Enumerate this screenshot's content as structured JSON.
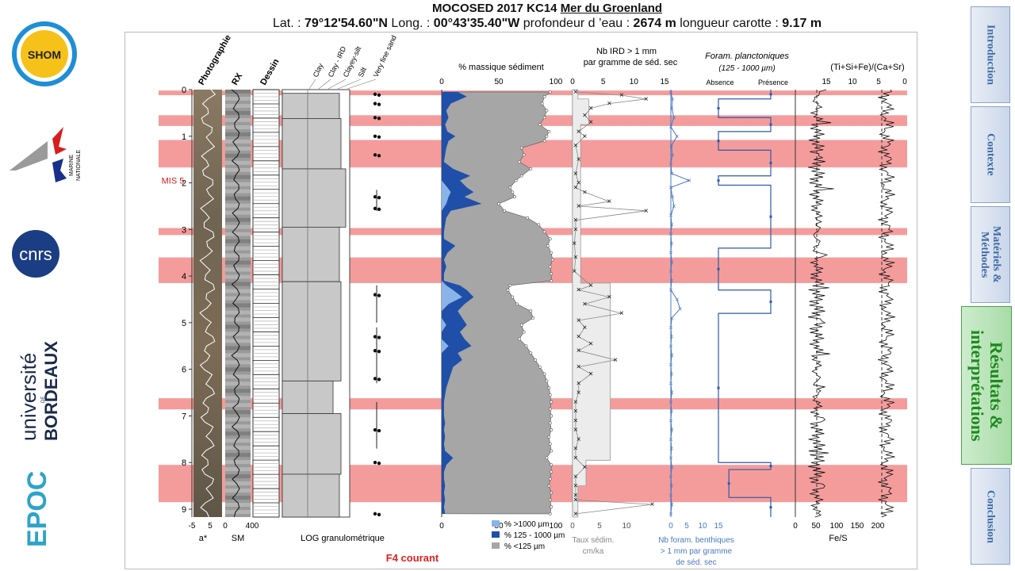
{
  "header": {
    "title": "MOCOSED 2017 KC14 Mer du Groenland",
    "title_main": "MOCOSED 2017 KC14 ",
    "title_sea": "Mer du Groenland",
    "lat_label": "Lat. : ",
    "lat_value": "79°12'54.60\"N",
    "long_label": " Long. : ",
    "long_value": "00°43'35.40\"W",
    "depth_label": " profondeur d ’eau : ",
    "depth_value": "2674 m",
    "core_label": " longueur carotte : ",
    "core_value": "9.17 m"
  },
  "logos": {
    "shom": "SHOM",
    "marine_line1": "MARINE",
    "marine_line2": "NATIONALE",
    "cnrs": "cnrs",
    "ub_line1": "université",
    "ub_line2": "BORDEAUX",
    "ub_de": "DE",
    "epoc": "EPOC"
  },
  "nav": {
    "items": [
      {
        "label": "Introduction"
      },
      {
        "label": "Contexte"
      },
      {
        "label": "Matériels & Méthodes"
      },
      {
        "label": "Résultats & interprétations"
      },
      {
        "label": "Conclusion"
      }
    ]
  },
  "chart_data": {
    "type": "multi-panel core log",
    "depth_axis": {
      "min": 0,
      "max": 9.17,
      "ticks": [
        0,
        1,
        2,
        3,
        4,
        5,
        6,
        7,
        8,
        9
      ],
      "unit": "m"
    },
    "mis_label": "MIS 5",
    "mis_depth": 1.95,
    "highlight_bands_m": [
      [
        0.02,
        0.12
      ],
      [
        0.55,
        0.78
      ],
      [
        1.08,
        1.67
      ],
      [
        2.97,
        3.12
      ],
      [
        3.6,
        4.15
      ],
      [
        6.62,
        6.86
      ],
      [
        8.05,
        8.85
      ]
    ],
    "columns": {
      "photo": {
        "title": "Photographie",
        "xlabel": "a*",
        "ticks": [
          "-5",
          "5"
        ]
      },
      "rx": {
        "title": "RX",
        "xlabel": "SM",
        "ticks": [
          "0",
          "400"
        ]
      },
      "dessin": {
        "title": "Dessin"
      },
      "log": {
        "xlabel": "LOG granulométrique",
        "classes": [
          "Clay",
          "Clay - IRD",
          "Clayey-silt",
          "Silt",
          "Very fine sand"
        ]
      },
      "grain": {
        "title": "% massique sédiment",
        "ticks": [
          "0",
          "50",
          "100"
        ],
        "legend": [
          "% >1000 µm",
          "% 125 - 1000 µm",
          "% <125 µm"
        ],
        "colors": {
          "coarse": "#8ab4e8",
          "medium": "#1f4fa8",
          "fine": "#a6a6a6"
        },
        "depth": [
          0.05,
          0.15,
          0.3,
          0.45,
          0.6,
          0.75,
          0.9,
          1.0,
          1.1,
          1.25,
          1.4,
          1.55,
          1.7,
          1.85,
          1.95,
          2.1,
          2.2,
          2.3,
          2.45,
          2.6,
          2.75,
          2.9,
          3.05,
          3.2,
          3.35,
          3.5,
          3.65,
          3.8,
          3.95,
          4.1,
          4.2,
          4.3,
          4.45,
          4.6,
          4.75,
          4.9,
          5.05,
          5.2,
          5.35,
          5.5,
          5.65,
          5.8,
          5.95,
          6.1,
          6.25,
          6.4,
          6.55,
          6.7,
          6.85,
          7.0,
          7.15,
          7.3,
          7.45,
          7.6,
          7.75,
          7.9,
          8.05,
          8.2,
          8.35,
          8.5,
          8.65,
          8.8,
          8.95,
          9.1
        ],
        "coarse_pct": [
          0,
          0,
          0,
          0,
          0,
          0,
          0,
          0,
          0,
          0,
          0,
          0,
          0,
          0,
          0,
          5,
          8,
          6,
          4,
          0,
          0,
          0,
          0,
          0,
          0,
          0,
          0,
          0,
          0,
          0,
          4,
          10,
          18,
          6,
          0,
          0,
          4,
          0,
          0,
          6,
          0,
          0,
          0,
          0,
          0,
          0,
          0,
          0,
          0,
          0,
          0,
          0,
          0,
          0,
          0,
          0,
          0,
          0,
          0,
          0,
          0,
          0,
          0,
          0
        ],
        "medium_pct": [
          14,
          22,
          8,
          4,
          6,
          3,
          5,
          12,
          6,
          4,
          3,
          2,
          10,
          25,
          16,
          22,
          28,
          20,
          35,
          8,
          4,
          3,
          2,
          2,
          12,
          5,
          2,
          4,
          2,
          2,
          16,
          22,
          28,
          20,
          14,
          18,
          22,
          16,
          20,
          26,
          14,
          18,
          10,
          8,
          6,
          4,
          3,
          2,
          2,
          2,
          3,
          2,
          3,
          2,
          3,
          10,
          4,
          2,
          2,
          3,
          2,
          3,
          2,
          3
        ],
        "fine_pct": [
          95,
          90,
          88,
          92,
          90,
          86,
          94,
          92,
          90,
          70,
          72,
          68,
          78,
          70,
          65,
          60,
          62,
          64,
          50,
          55,
          75,
          85,
          90,
          95,
          93,
          96,
          97,
          95,
          96,
          96,
          60,
          58,
          62,
          66,
          78,
          80,
          70,
          72,
          68,
          74,
          78,
          82,
          86,
          90,
          92,
          94,
          95,
          96,
          95,
          96,
          95,
          96,
          94,
          95,
          96,
          92,
          96,
          96,
          95,
          94,
          96,
          95,
          96,
          95
        ]
      },
      "ird": {
        "title": "Nb IRD > 1 mm par gramme de séd. sec",
        "ticks": [
          "0",
          "5",
          "10",
          "15"
        ],
        "depth": [
          0.05,
          0.12,
          0.2,
          0.3,
          0.4,
          0.55,
          0.7,
          0.9,
          1.0,
          1.2,
          1.5,
          1.8,
          2.0,
          2.1,
          2.2,
          2.4,
          2.5,
          2.6,
          2.8,
          3.0,
          3.3,
          3.6,
          3.9,
          4.2,
          4.3,
          4.45,
          4.6,
          4.8,
          4.95,
          5.1,
          5.3,
          5.45,
          5.6,
          5.8,
          5.95,
          6.1,
          6.3,
          6.5,
          6.7,
          6.9,
          7.1,
          7.3,
          7.5,
          7.7,
          7.9,
          8.1,
          8.3,
          8.5,
          8.7,
          8.8,
          8.9,
          9.1
        ],
        "values": [
          0.5,
          8,
          12,
          6,
          3,
          2,
          3,
          1,
          2,
          0.5,
          1,
          0.5,
          1,
          0.5,
          2,
          6,
          1,
          12,
          0.5,
          0.5,
          0.3,
          0.5,
          0.3,
          3,
          1,
          6,
          2,
          8,
          1,
          2,
          1,
          3,
          1,
          7,
          1,
          3,
          1,
          1,
          0.5,
          0.5,
          0.5,
          0.5,
          1,
          0.5,
          0.5,
          2,
          0.5,
          0.5,
          0.5,
          0.5,
          13,
          0.5
        ]
      },
      "sedrate": {
        "xlabel": "Taux sédim.",
        "unit": "cm/ka",
        "ticks": [
          "0",
          "5",
          "10"
        ],
        "steps": [
          [
            0,
            0.2,
            1
          ],
          [
            0.2,
            0.75,
            3
          ],
          [
            0.75,
            4.15,
            1.5
          ],
          [
            4.15,
            7.95,
            7
          ],
          [
            7.95,
            8.5,
            2.5
          ],
          [
            8.5,
            9.17,
            1
          ]
        ]
      },
      "benthic": {
        "xlabel": "Nb foram. benthiques > 1 mm par gramme de séd. sec",
        "ticks": [
          "0",
          "5",
          "10",
          "15"
        ],
        "color": "#4a78c2",
        "depth": [
          0.05,
          0.2,
          0.4,
          0.6,
          0.8,
          1.0,
          1.2,
          1.4,
          1.6,
          1.8,
          1.95,
          2.1,
          2.3,
          2.5,
          2.7,
          2.9,
          3.1,
          3.3,
          3.5,
          3.7,
          3.9,
          4.1,
          4.3,
          4.5,
          4.7,
          4.9,
          5.1,
          5.3,
          5.5,
          5.7,
          5.9,
          6.1,
          6.3,
          6.5,
          6.7,
          6.9,
          7.1,
          7.3,
          7.5,
          7.7,
          7.9,
          8.1,
          8.3,
          8.5,
          8.7,
          8.9,
          9.1
        ],
        "values": [
          0,
          0.5,
          0.3,
          1,
          0,
          2,
          0.2,
          0.5,
          0,
          0.3,
          6,
          0,
          0.5,
          1,
          0,
          0.3,
          0,
          0.2,
          0,
          0.3,
          0,
          0.2,
          0,
          2,
          3,
          0.3,
          0,
          0.2,
          0,
          0.3,
          0,
          0.2,
          0,
          0.3,
          0,
          0.2,
          0,
          0.3,
          0,
          0.2,
          0,
          0.3,
          0,
          0.2,
          0,
          0.3,
          0
        ]
      },
      "foram": {
        "title": "Foram. planctoniques",
        "subtitle": "(125 - 1000 µm)",
        "absent": "Absence",
        "present": "Présence",
        "steps": [
          [
            0,
            0.2,
            1
          ],
          [
            0.2,
            0.6,
            0
          ],
          [
            0.6,
            0.9,
            1
          ],
          [
            0.9,
            1.3,
            0
          ],
          [
            1.3,
            1.85,
            1
          ],
          [
            1.85,
            2.05,
            0
          ],
          [
            2.05,
            3.4,
            1
          ],
          [
            3.4,
            4.3,
            0
          ],
          [
            4.3,
            4.8,
            1
          ],
          [
            4.8,
            8.0,
            0
          ],
          [
            8.0,
            8.15,
            1
          ],
          [
            8.15,
            8.75,
            0.2
          ],
          [
            8.75,
            9.17,
            1
          ]
        ]
      },
      "fes": {
        "xlabel": "Fe/S",
        "ticks": [
          "0",
          "50",
          "100",
          "150",
          "200"
        ]
      },
      "ratio": {
        "title": "(Ti+Si+Fe)/(Ca+Sr)",
        "ticks": [
          "15",
          "10",
          "5",
          "0"
        ]
      }
    }
  },
  "footer_note": "F4 courant"
}
